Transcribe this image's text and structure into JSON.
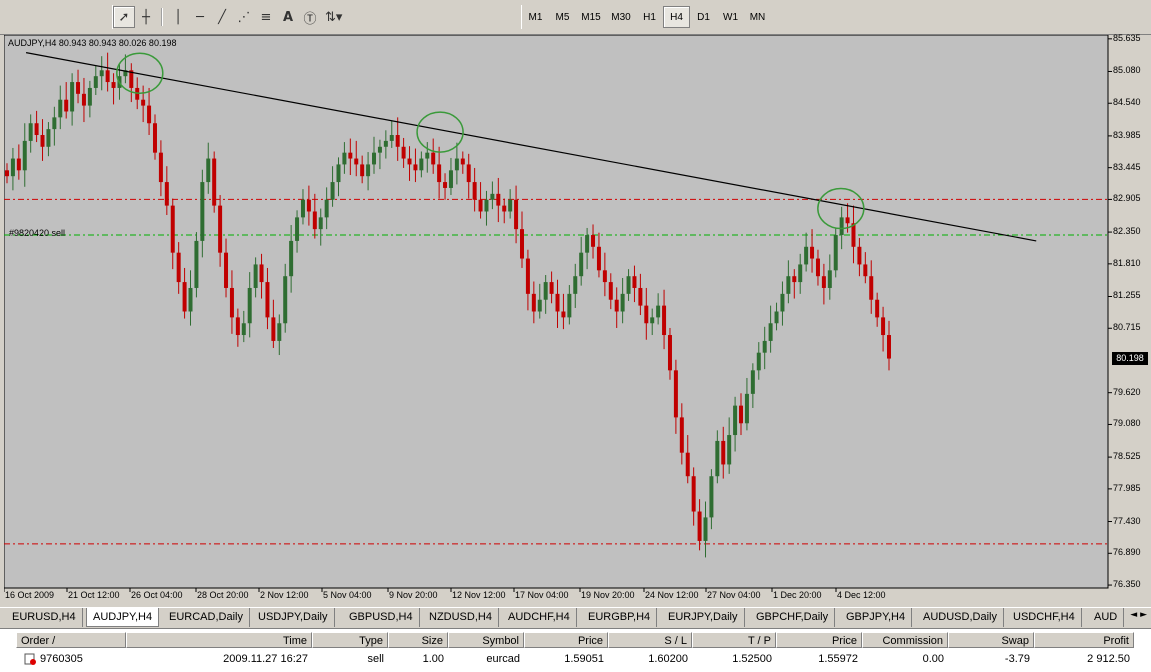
{
  "toolbar": {
    "timeframes": [
      "M1",
      "M5",
      "M15",
      "M30",
      "H1",
      "H4",
      "D1",
      "W1",
      "MN"
    ],
    "active_timeframe": "H4",
    "tools": [
      "cursor-icon",
      "crosshair-icon",
      "vertical-line-icon",
      "horizontal-line-icon",
      "trendline-icon",
      "fibonacci-fan-icon",
      "fibonacci-retracement-icon",
      "text-icon",
      "text-label-icon",
      "arrows-icon"
    ]
  },
  "chart": {
    "title": "AUDJPY,H4  80.943 80.943 80.026 80.198",
    "order_label": "#9820420 sell",
    "current_price": "80.198",
    "colors": {
      "background": "#c0c0c0",
      "bull": "#2f6d32",
      "bear": "#c00000",
      "trendline": "#000000",
      "circle": "#3a9a3a",
      "red_level": "#d00000",
      "green_level": "#00b000"
    }
  },
  "chart_data": {
    "type": "candlestick",
    "symbol": "AUDJPY",
    "timeframe": "H4",
    "ylim": [
      76.3,
      85.7
    ],
    "y_ticks": [
      "85.635",
      "85.080",
      "84.540",
      "83.985",
      "83.445",
      "82.905",
      "82.350",
      "81.810",
      "81.255",
      "80.715",
      "80.198",
      "79.620",
      "79.080",
      "78.525",
      "77.985",
      "77.430",
      "76.890",
      "76.350"
    ],
    "x_ticks": [
      "16 Oct 2009",
      "21 Oct 12:00",
      "26 Oct 04:00",
      "28 Oct 20:00",
      "2 Nov 12:00",
      "5 Nov 04:00",
      "9 Nov 20:00",
      "12 Nov 12:00",
      "17 Nov 04:00",
      "19 Nov 20:00",
      "24 Nov 12:00",
      "27 Nov 04:00",
      "1 Dec 20:00",
      "4 Dec 12:00"
    ],
    "levels": [
      {
        "price": 82.905,
        "color": "red"
      },
      {
        "price": 82.3,
        "color": "green"
      },
      {
        "price": 77.05,
        "color": "red"
      }
    ],
    "trendline": {
      "from": [
        0.02,
        85.4
      ],
      "to": [
        0.935,
        82.2
      ]
    },
    "circled_highs": [
      [
        0.123,
        85.05
      ],
      [
        0.395,
        84.05
      ],
      [
        0.758,
        82.75
      ]
    ],
    "closes": [
      83.3,
      83.6,
      83.4,
      83.9,
      84.2,
      84.0,
      83.8,
      84.1,
      84.3,
      84.6,
      84.4,
      84.9,
      84.7,
      84.5,
      84.8,
      85.0,
      85.1,
      84.9,
      84.8,
      85.0,
      85.1,
      84.8,
      84.6,
      84.5,
      84.2,
      83.7,
      83.2,
      82.8,
      82.0,
      81.5,
      81.0,
      81.4,
      82.2,
      83.2,
      83.6,
      82.8,
      82.0,
      81.4,
      80.9,
      80.6,
      80.8,
      81.4,
      81.8,
      81.5,
      80.9,
      80.5,
      80.8,
      81.6,
      82.2,
      82.6,
      82.9,
      82.7,
      82.4,
      82.6,
      82.9,
      83.2,
      83.5,
      83.7,
      83.6,
      83.5,
      83.3,
      83.5,
      83.7,
      83.8,
      83.9,
      84.0,
      83.8,
      83.6,
      83.5,
      83.4,
      83.6,
      83.7,
      83.5,
      83.2,
      83.1,
      83.4,
      83.6,
      83.5,
      83.2,
      82.9,
      82.7,
      82.9,
      83.0,
      82.8,
      82.7,
      82.9,
      82.4,
      81.9,
      81.3,
      81.0,
      81.2,
      81.5,
      81.3,
      81.0,
      80.9,
      81.3,
      81.6,
      82.0,
      82.3,
      82.1,
      81.7,
      81.5,
      81.2,
      81.0,
      81.3,
      81.6,
      81.4,
      81.1,
      80.8,
      80.9,
      81.1,
      80.6,
      80.0,
      79.2,
      78.6,
      78.2,
      77.6,
      77.1,
      77.5,
      78.2,
      78.8,
      78.4,
      78.9,
      79.4,
      79.1,
      79.6,
      80.0,
      80.3,
      80.5,
      80.8,
      81.0,
      81.3,
      81.6,
      81.5,
      81.8,
      82.1,
      81.9,
      81.6,
      81.4,
      81.7,
      82.3,
      82.6,
      82.5,
      82.1,
      81.8,
      81.6,
      81.2,
      80.9,
      80.6,
      80.2
    ]
  },
  "tabs": {
    "items": [
      "EURUSD,H4",
      "AUDJPY,H4",
      "EURCAD,Daily",
      "USDJPY,Daily",
      "GBPUSD,H4",
      "NZDUSD,H4",
      "AUDCHF,H4",
      "EURGBP,H4",
      "EURJPY,Daily",
      "GBPCHF,Daily",
      "GBPJPY,H4",
      "AUDUSD,Daily",
      "USDCHF,H4",
      "AUD"
    ],
    "active": "AUDJPY,H4",
    "arrows": "◄ ►"
  },
  "terminal": {
    "headers": [
      "Order  /",
      "Time",
      "Type",
      "Size",
      "Symbol",
      "Price",
      "S / L",
      "T / P",
      "Price",
      "Commission",
      "Swap",
      "Profit"
    ],
    "row": [
      "9760305",
      "2009.11.27 16:27",
      "sell",
      "1.00",
      "eurcad",
      "1.59051",
      "1.60200",
      "1.52500",
      "1.55972",
      "0.00",
      "-3.79",
      "2 912.50"
    ]
  }
}
